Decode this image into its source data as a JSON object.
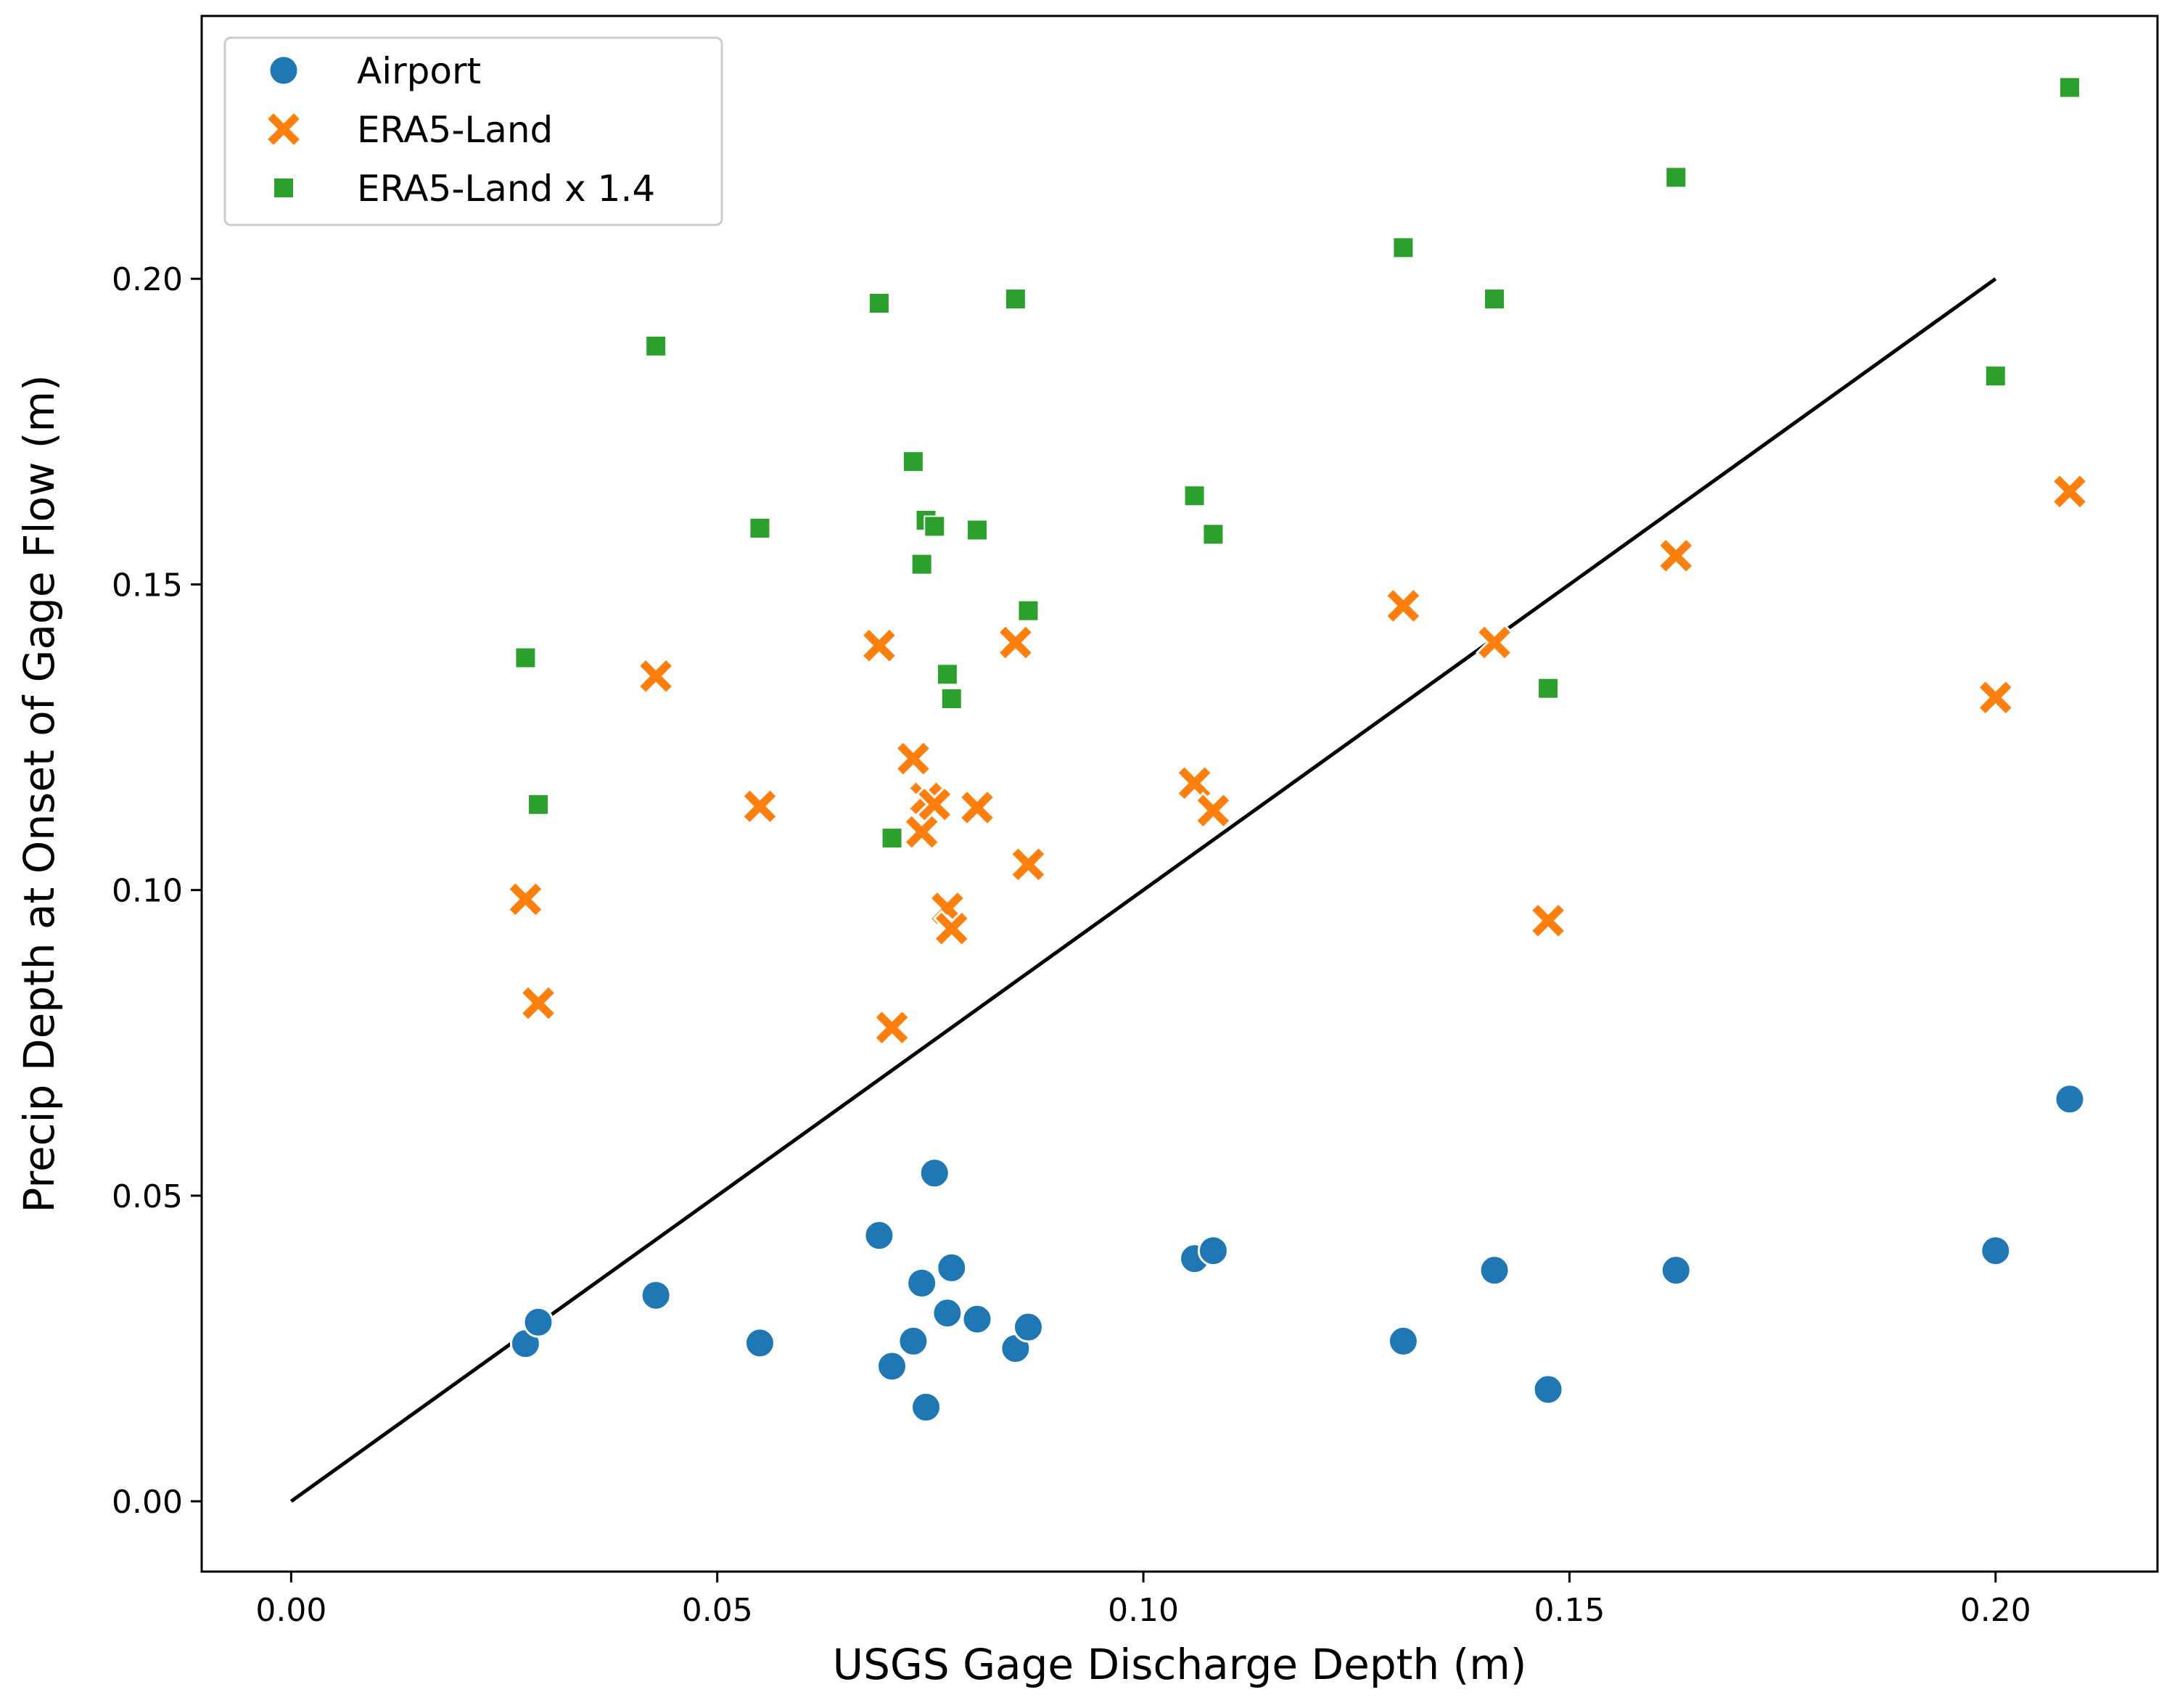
{
  "chart_data": {
    "type": "scatter",
    "title": "",
    "xlabel": "USGS Gage Discharge Depth (m)",
    "ylabel": "Precip Depth at Onset of Gage Flow (m)",
    "xlim": [
      -0.0105,
      0.219
    ],
    "ylim": [
      -0.0115,
      0.243
    ],
    "xticks": [
      0.0,
      0.05,
      0.1,
      0.15,
      0.2
    ],
    "xtick_labels": [
      "0.00",
      "0.05",
      "0.10",
      "0.15",
      "0.20"
    ],
    "yticks": [
      0.0,
      0.05,
      0.1,
      0.15,
      0.2
    ],
    "ytick_labels": [
      "0.00",
      "0.05",
      "0.10",
      "0.15",
      "0.20"
    ],
    "grid": false,
    "legend_position": "top-left",
    "reference_line": {
      "name": "1:1 line",
      "x": [
        0.0,
        0.2
      ],
      "y": [
        0.0,
        0.2
      ],
      "color": "#000000"
    },
    "series": [
      {
        "name": "Airport",
        "marker": "circle",
        "color": "#1f77b4",
        "points": [
          [
            0.0275,
            0.0258
          ],
          [
            0.029,
            0.0293
          ],
          [
            0.0428,
            0.0337
          ],
          [
            0.055,
            0.0259
          ],
          [
            0.069,
            0.0435
          ],
          [
            0.0705,
            0.0221
          ],
          [
            0.073,
            0.0262
          ],
          [
            0.074,
            0.0357
          ],
          [
            0.0745,
            0.0154
          ],
          [
            0.0755,
            0.0537
          ],
          [
            0.077,
            0.0308
          ],
          [
            0.0775,
            0.0382
          ],
          [
            0.0805,
            0.0298
          ],
          [
            0.085,
            0.025
          ],
          [
            0.0865,
            0.0285
          ],
          [
            0.106,
            0.0397
          ],
          [
            0.1082,
            0.041
          ],
          [
            0.1305,
            0.0262
          ],
          [
            0.1412,
            0.0378
          ],
          [
            0.1475,
            0.0183
          ],
          [
            0.1625,
            0.0378
          ],
          [
            0.2,
            0.041
          ],
          [
            0.2087,
            0.0658
          ]
        ]
      },
      {
        "name": "ERA5-Land",
        "marker": "x",
        "color": "#ff7f0e",
        "points": [
          [
            0.0275,
            0.0985
          ],
          [
            0.029,
            0.0815
          ],
          [
            0.0428,
            0.135
          ],
          [
            0.055,
            0.1137
          ],
          [
            0.069,
            0.14
          ],
          [
            0.0705,
            0.0775
          ],
          [
            0.073,
            0.1215
          ],
          [
            0.074,
            0.1095
          ],
          [
            0.0745,
            0.115
          ],
          [
            0.0755,
            0.114
          ],
          [
            0.077,
            0.097
          ],
          [
            0.0775,
            0.0937
          ],
          [
            0.0805,
            0.1135
          ],
          [
            0.085,
            0.1405
          ],
          [
            0.0865,
            0.1042
          ],
          [
            0.106,
            0.1175
          ],
          [
            0.1082,
            0.113
          ],
          [
            0.1305,
            0.1465
          ],
          [
            0.1412,
            0.1405
          ],
          [
            0.1475,
            0.095
          ],
          [
            0.1625,
            0.1547
          ],
          [
            0.2,
            0.1315
          ],
          [
            0.2087,
            0.1652
          ]
        ]
      },
      {
        "name": "ERA5-Land x 1.4",
        "marker": "square",
        "color": "#2ca02c",
        "points": [
          [
            0.0275,
            0.138
          ],
          [
            0.029,
            0.114
          ],
          [
            0.0428,
            0.189
          ],
          [
            0.055,
            0.1592
          ],
          [
            0.069,
            0.196
          ],
          [
            0.0705,
            0.1085
          ],
          [
            0.073,
            0.1701
          ],
          [
            0.074,
            0.1533
          ],
          [
            0.0745,
            0.1605
          ],
          [
            0.0755,
            0.1595
          ],
          [
            0.077,
            0.1353
          ],
          [
            0.0775,
            0.1313
          ],
          [
            0.0805,
            0.1589
          ],
          [
            0.085,
            0.1967
          ],
          [
            0.0865,
            0.1457
          ],
          [
            0.106,
            0.1645
          ],
          [
            0.1082,
            0.1582
          ],
          [
            0.1305,
            0.2051
          ],
          [
            0.1412,
            0.1967
          ],
          [
            0.1475,
            0.133
          ],
          [
            0.1625,
            0.2166
          ],
          [
            0.2,
            0.1841
          ],
          [
            0.2087,
            0.2313
          ]
        ]
      }
    ]
  }
}
